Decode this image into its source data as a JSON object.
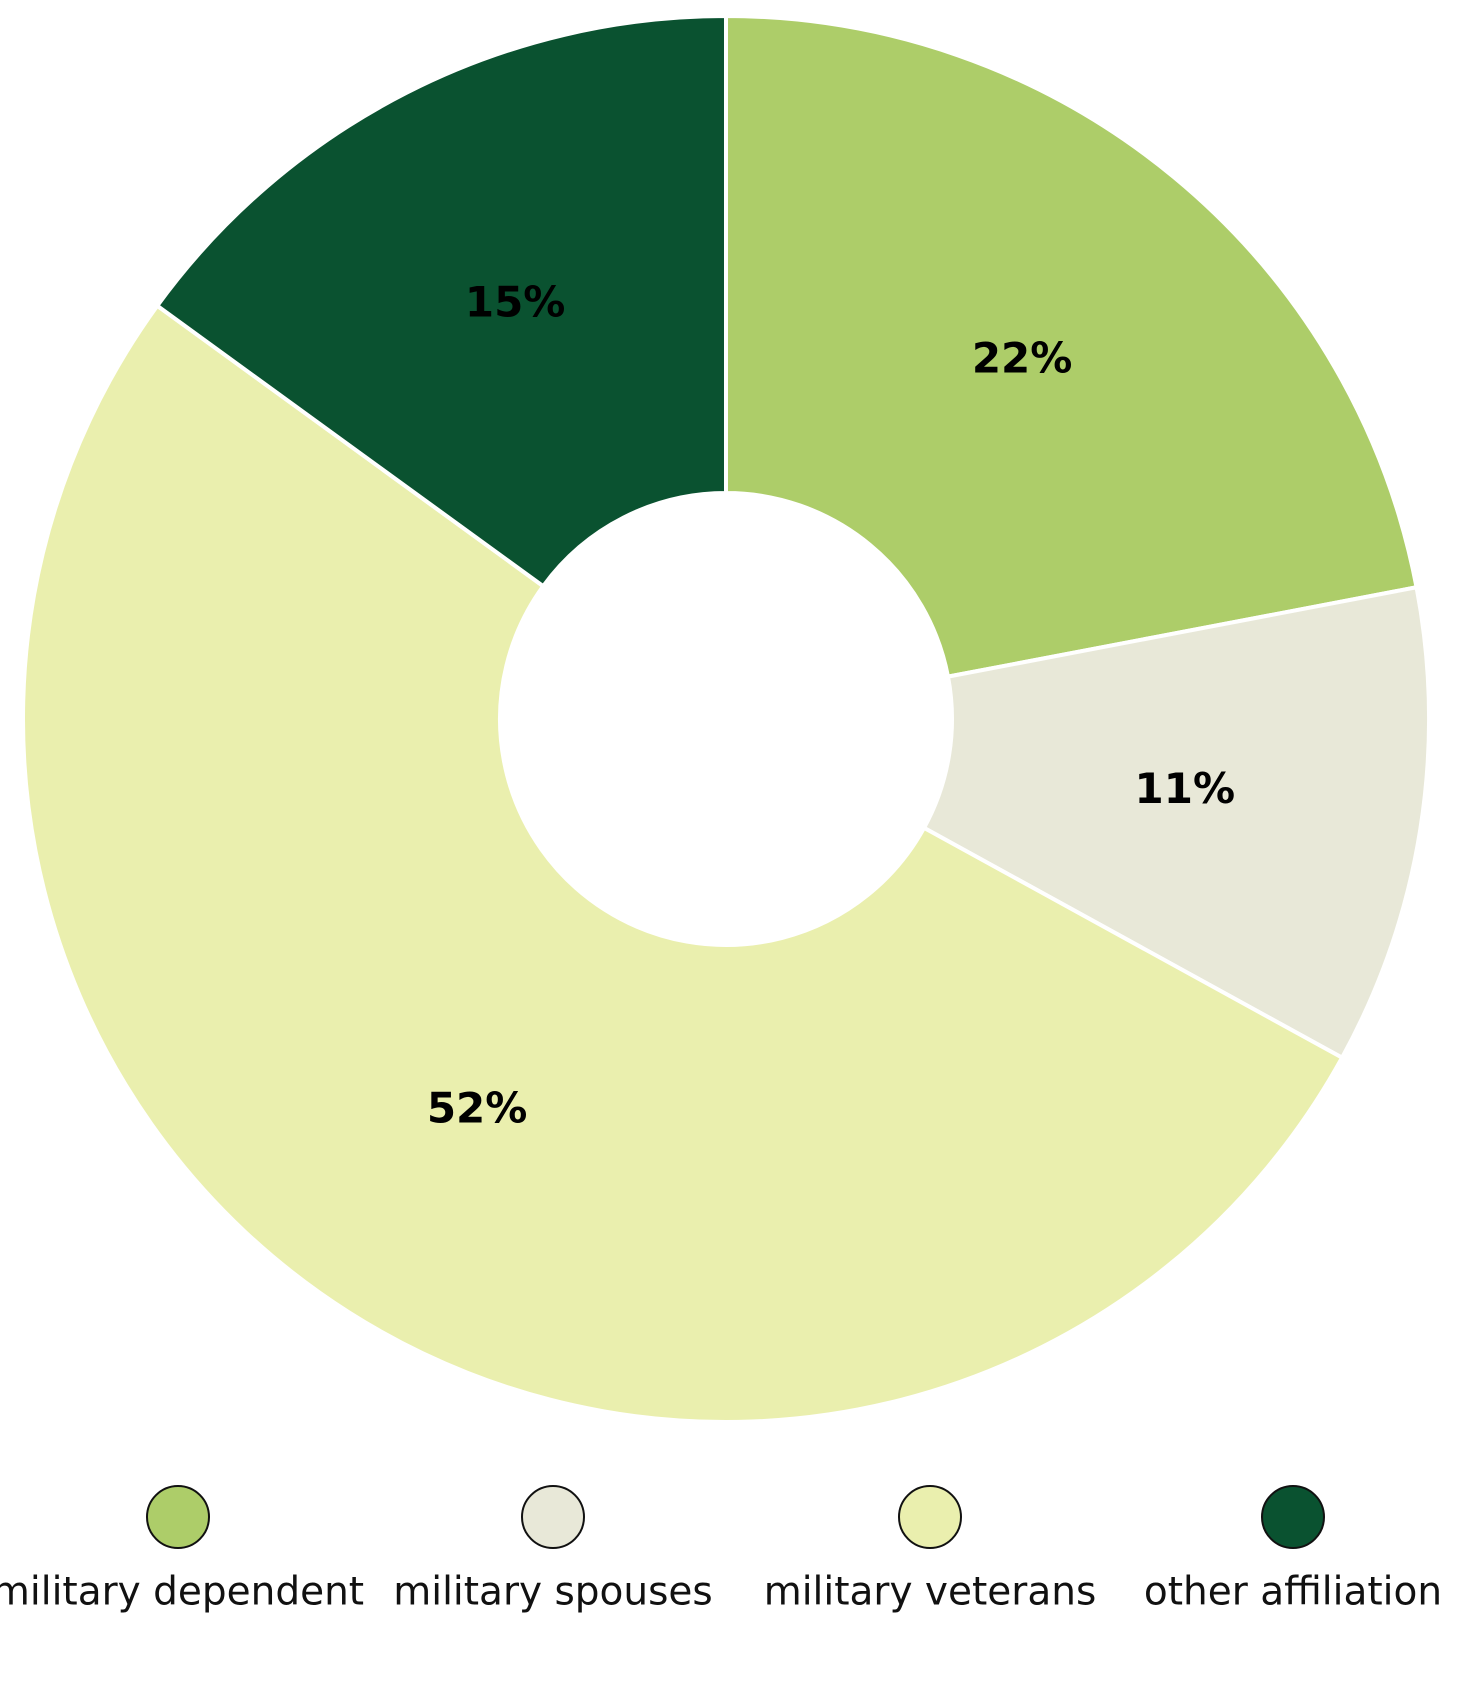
{
  "chart_data": {
    "type": "donut",
    "categories": [
      "military dependent",
      "military spouses",
      "military veterans",
      "other affiliation"
    ],
    "values": [
      22,
      11,
      52,
      15
    ],
    "value_labels": [
      "22%",
      "11%",
      "52%",
      "15%"
    ],
    "colors": [
      "#adcd69",
      "#e8e8d8",
      "#eaefae",
      "#0a5230"
    ]
  }
}
